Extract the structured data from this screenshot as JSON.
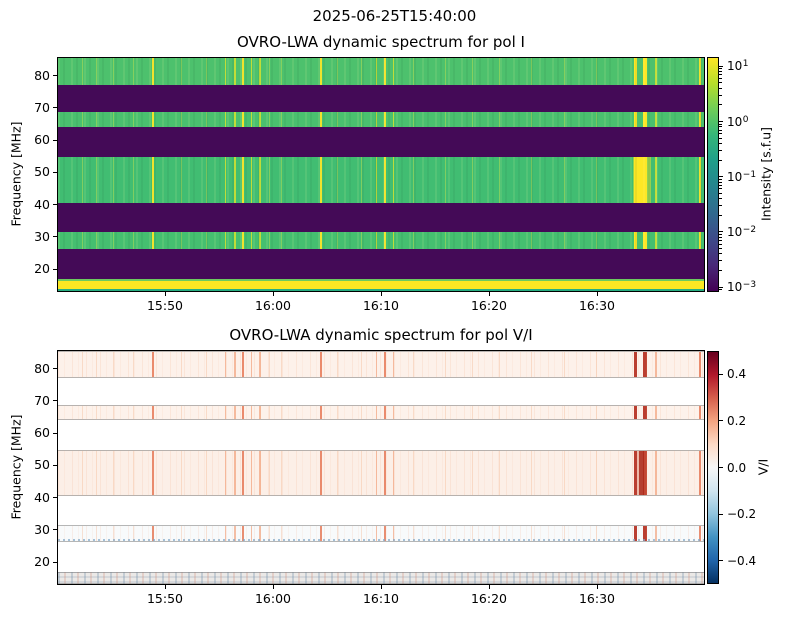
{
  "figure": {
    "suptitle": "2025-06-25T15:40:00",
    "background": "#ffffff"
  },
  "chart_data": [
    {
      "type": "heatmap",
      "title": "OVRO-LWA dynamic spectrum for pol I",
      "ylabel": "Frequency [MHz]",
      "x_ticks": [
        {
          "minute": 10,
          "label": "15:50"
        },
        {
          "minute": 20,
          "label": "16:00"
        },
        {
          "minute": 30,
          "label": "16:10"
        },
        {
          "minute": 40,
          "label": "16:20"
        },
        {
          "minute": 50,
          "label": "16:30"
        }
      ],
      "x_range": [
        "15:40",
        "16:40"
      ],
      "y_ticks": [
        {
          "mhz": 80,
          "label": "80"
        },
        {
          "mhz": 70,
          "label": "70"
        },
        {
          "mhz": 60,
          "label": "60"
        },
        {
          "mhz": 50,
          "label": "50"
        },
        {
          "mhz": 40,
          "label": "40"
        },
        {
          "mhz": 30,
          "label": "30"
        },
        {
          "mhz": 20,
          "label": "20"
        }
      ],
      "y_range_mhz": [
        85.5,
        13.2
      ],
      "colorbar": {
        "label": "Intensity [s.f.u]",
        "scale": "log",
        "colormap": "viridis",
        "range_exp": [
          -3.09,
          1.17
        ],
        "ticks": [
          {
            "exp": 1,
            "exp_label": "1"
          },
          {
            "exp": 0,
            "exp_label": "0"
          },
          {
            "exp": -1,
            "exp_label": "−1"
          },
          {
            "exp": -2,
            "exp_label": "−2"
          },
          {
            "exp": -3,
            "exp_label": "−3"
          }
        ]
      },
      "background_color": "#440a57",
      "bands": [
        {
          "f_hi": 85.5,
          "f_lo": 77.2,
          "kind": "signal",
          "color": "#4dc16d",
          "level_sfu": "~1"
        },
        {
          "f_hi": 68.6,
          "f_lo": 64.0,
          "kind": "signal",
          "color": "#4ac06f",
          "level_sfu": "~1"
        },
        {
          "f_hi": 54.7,
          "f_lo": 40.6,
          "kind": "signal",
          "color": "#41bd72",
          "level_sfu": "~1",
          "blob": true
        },
        {
          "f_hi": 31.4,
          "f_lo": 26.1,
          "kind": "signal",
          "color": "#45bf70",
          "level_sfu": "~1"
        },
        {
          "f_hi": 16.9,
          "f_lo": 13.2,
          "kind": "rfi",
          "level_sfu": ">10"
        }
      ],
      "rfi_strip": {
        "top": "#6ccb5f",
        "body": "#fbe723",
        "bottom": "#27ad81"
      },
      "burst_colors": [
        "rgba(190,224,80,0.5)",
        "rgba(222,227,42,0.8)",
        "#f0e32d",
        "#fde725"
      ],
      "blob": {
        "t": 54.2,
        "halo_w": 18,
        "core_w": 9,
        "halo": "rgba(253,231,37,0.45)",
        "core": "#fde725"
      },
      "bursts": [
        {
          "t": 2.3,
          "w": 1,
          "s": 0
        },
        {
          "t": 3.6,
          "w": 1,
          "s": 0
        },
        {
          "t": 5.2,
          "w": 1,
          "s": 0
        },
        {
          "t": 7.0,
          "w": 1,
          "s": 0
        },
        {
          "t": 8.8,
          "w": 2,
          "s": 2
        },
        {
          "t": 11.5,
          "w": 1,
          "s": 0
        },
        {
          "t": 13.8,
          "w": 1,
          "s": 0
        },
        {
          "t": 15.6,
          "w": 1,
          "s": 1
        },
        {
          "t": 16.4,
          "w": 2,
          "s": 1
        },
        {
          "t": 17.2,
          "w": 2,
          "s": 2
        },
        {
          "t": 18.0,
          "w": 1,
          "s": 1
        },
        {
          "t": 18.8,
          "w": 2,
          "s": 1
        },
        {
          "t": 19.6,
          "w": 1,
          "s": 0
        },
        {
          "t": 20.8,
          "w": 1,
          "s": 0
        },
        {
          "t": 24.4,
          "w": 2,
          "s": 2
        },
        {
          "t": 26.0,
          "w": 1,
          "s": 0
        },
        {
          "t": 28.2,
          "w": 1,
          "s": 0
        },
        {
          "t": 29.6,
          "w": 1,
          "s": 1
        },
        {
          "t": 30.4,
          "w": 2,
          "s": 2
        },
        {
          "t": 31.2,
          "w": 1,
          "s": 1
        },
        {
          "t": 33.0,
          "w": 1,
          "s": 0
        },
        {
          "t": 36.0,
          "w": 1,
          "s": 0
        },
        {
          "t": 38.5,
          "w": 1,
          "s": 0
        },
        {
          "t": 41.0,
          "w": 1,
          "s": 0
        },
        {
          "t": 44.0,
          "w": 1,
          "s": 0
        },
        {
          "t": 47.0,
          "w": 1,
          "s": 0
        },
        {
          "t": 50.0,
          "w": 1,
          "s": 0
        },
        {
          "t": 53.6,
          "w": 3,
          "s": 3
        },
        {
          "t": 54.5,
          "w": 4,
          "s": 3
        },
        {
          "t": 55.5,
          "w": 2,
          "s": 1
        },
        {
          "t": 59.6,
          "w": 2,
          "s": 2
        }
      ]
    },
    {
      "type": "heatmap",
      "title": "OVRO-LWA dynamic spectrum for pol V/I",
      "ylabel": "Frequency [MHz]",
      "x_ticks": [
        {
          "minute": 10,
          "label": "15:50"
        },
        {
          "minute": 20,
          "label": "16:00"
        },
        {
          "minute": 30,
          "label": "16:10"
        },
        {
          "minute": 40,
          "label": "16:20"
        },
        {
          "minute": 50,
          "label": "16:30"
        }
      ],
      "x_range": [
        "15:40",
        "16:40"
      ],
      "y_ticks": [
        {
          "mhz": 80,
          "label": "80"
        },
        {
          "mhz": 70,
          "label": "70"
        },
        {
          "mhz": 60,
          "label": "60"
        },
        {
          "mhz": 50,
          "label": "50"
        },
        {
          "mhz": 40,
          "label": "40"
        },
        {
          "mhz": 30,
          "label": "30"
        },
        {
          "mhz": 20,
          "label": "20"
        }
      ],
      "y_range_mhz": [
        85.5,
        13.2
      ],
      "colorbar": {
        "label": "V/I",
        "scale": "linear",
        "colormap": "RdBu_r",
        "range": [
          -0.5,
          0.5
        ],
        "ticks": [
          {
            "v": 0.4,
            "label": "0.4"
          },
          {
            "v": 0.2,
            "label": "0.2"
          },
          {
            "v": 0.0,
            "label": "0.0"
          },
          {
            "v": -0.2,
            "label": "−0.2"
          },
          {
            "v": -0.4,
            "label": "−0.4"
          }
        ]
      },
      "background_color": "#ffffff",
      "bands": [
        {
          "f_hi": 85.5,
          "f_lo": 77.2,
          "kind": "signal",
          "color": "#fdf1ea",
          "level_vi": "~+0.02"
        },
        {
          "f_hi": 68.6,
          "f_lo": 64.0,
          "kind": "signal",
          "color": "#fdf2eb",
          "level_vi": "~+0.02"
        },
        {
          "f_hi": 54.7,
          "f_lo": 40.6,
          "kind": "signal",
          "color": "#fcefe7",
          "level_vi": "~+0.03",
          "blob": true
        },
        {
          "f_hi": 31.4,
          "f_lo": 26.1,
          "kind": "signal",
          "color": "#f8fafb",
          "level_vi": "~0.0",
          "edge_bottom": "#7fa8c9"
        },
        {
          "f_hi": 16.9,
          "f_lo": 13.2,
          "kind": "rfi",
          "level_vi": "noisy"
        }
      ],
      "burst_colors": [
        "rgba(242,166,120,0.30)",
        "rgba(238,130,80,0.5)",
        "rgba(225,95,55,0.7)",
        "rgba(178,42,28,0.9)"
      ],
      "blob": {
        "t": 54.2,
        "halo_w": 10,
        "core_w": 5,
        "halo": "rgba(210,90,60,0.35)",
        "core": "rgba(170,40,25,0.85)"
      },
      "bursts": [
        {
          "t": 2.3,
          "w": 1,
          "s": 0
        },
        {
          "t": 3.6,
          "w": 1,
          "s": 0
        },
        {
          "t": 5.2,
          "w": 1,
          "s": 0
        },
        {
          "t": 7.0,
          "w": 1,
          "s": 0
        },
        {
          "t": 8.8,
          "w": 2,
          "s": 2
        },
        {
          "t": 11.5,
          "w": 1,
          "s": 0
        },
        {
          "t": 13.8,
          "w": 1,
          "s": 0
        },
        {
          "t": 15.6,
          "w": 1,
          "s": 1
        },
        {
          "t": 16.4,
          "w": 2,
          "s": 1
        },
        {
          "t": 17.2,
          "w": 2,
          "s": 2
        },
        {
          "t": 18.0,
          "w": 1,
          "s": 1
        },
        {
          "t": 18.8,
          "w": 2,
          "s": 1
        },
        {
          "t": 19.6,
          "w": 1,
          "s": 0
        },
        {
          "t": 20.8,
          "w": 1,
          "s": 0
        },
        {
          "t": 24.4,
          "w": 2,
          "s": 2
        },
        {
          "t": 26.0,
          "w": 1,
          "s": 0
        },
        {
          "t": 28.2,
          "w": 1,
          "s": 0
        },
        {
          "t": 29.6,
          "w": 1,
          "s": 1
        },
        {
          "t": 30.4,
          "w": 2,
          "s": 2
        },
        {
          "t": 31.2,
          "w": 1,
          "s": 1
        },
        {
          "t": 33.0,
          "w": 1,
          "s": 0
        },
        {
          "t": 36.0,
          "w": 1,
          "s": 0
        },
        {
          "t": 38.5,
          "w": 1,
          "s": 0
        },
        {
          "t": 41.0,
          "w": 1,
          "s": 0
        },
        {
          "t": 44.0,
          "w": 1,
          "s": 0
        },
        {
          "t": 47.0,
          "w": 1,
          "s": 0
        },
        {
          "t": 50.0,
          "w": 1,
          "s": 0
        },
        {
          "t": 53.6,
          "w": 3,
          "s": 3
        },
        {
          "t": 54.5,
          "w": 4,
          "s": 3
        },
        {
          "t": 55.5,
          "w": 2,
          "s": 1
        },
        {
          "t": 59.6,
          "w": 2,
          "s": 2
        }
      ]
    }
  ]
}
